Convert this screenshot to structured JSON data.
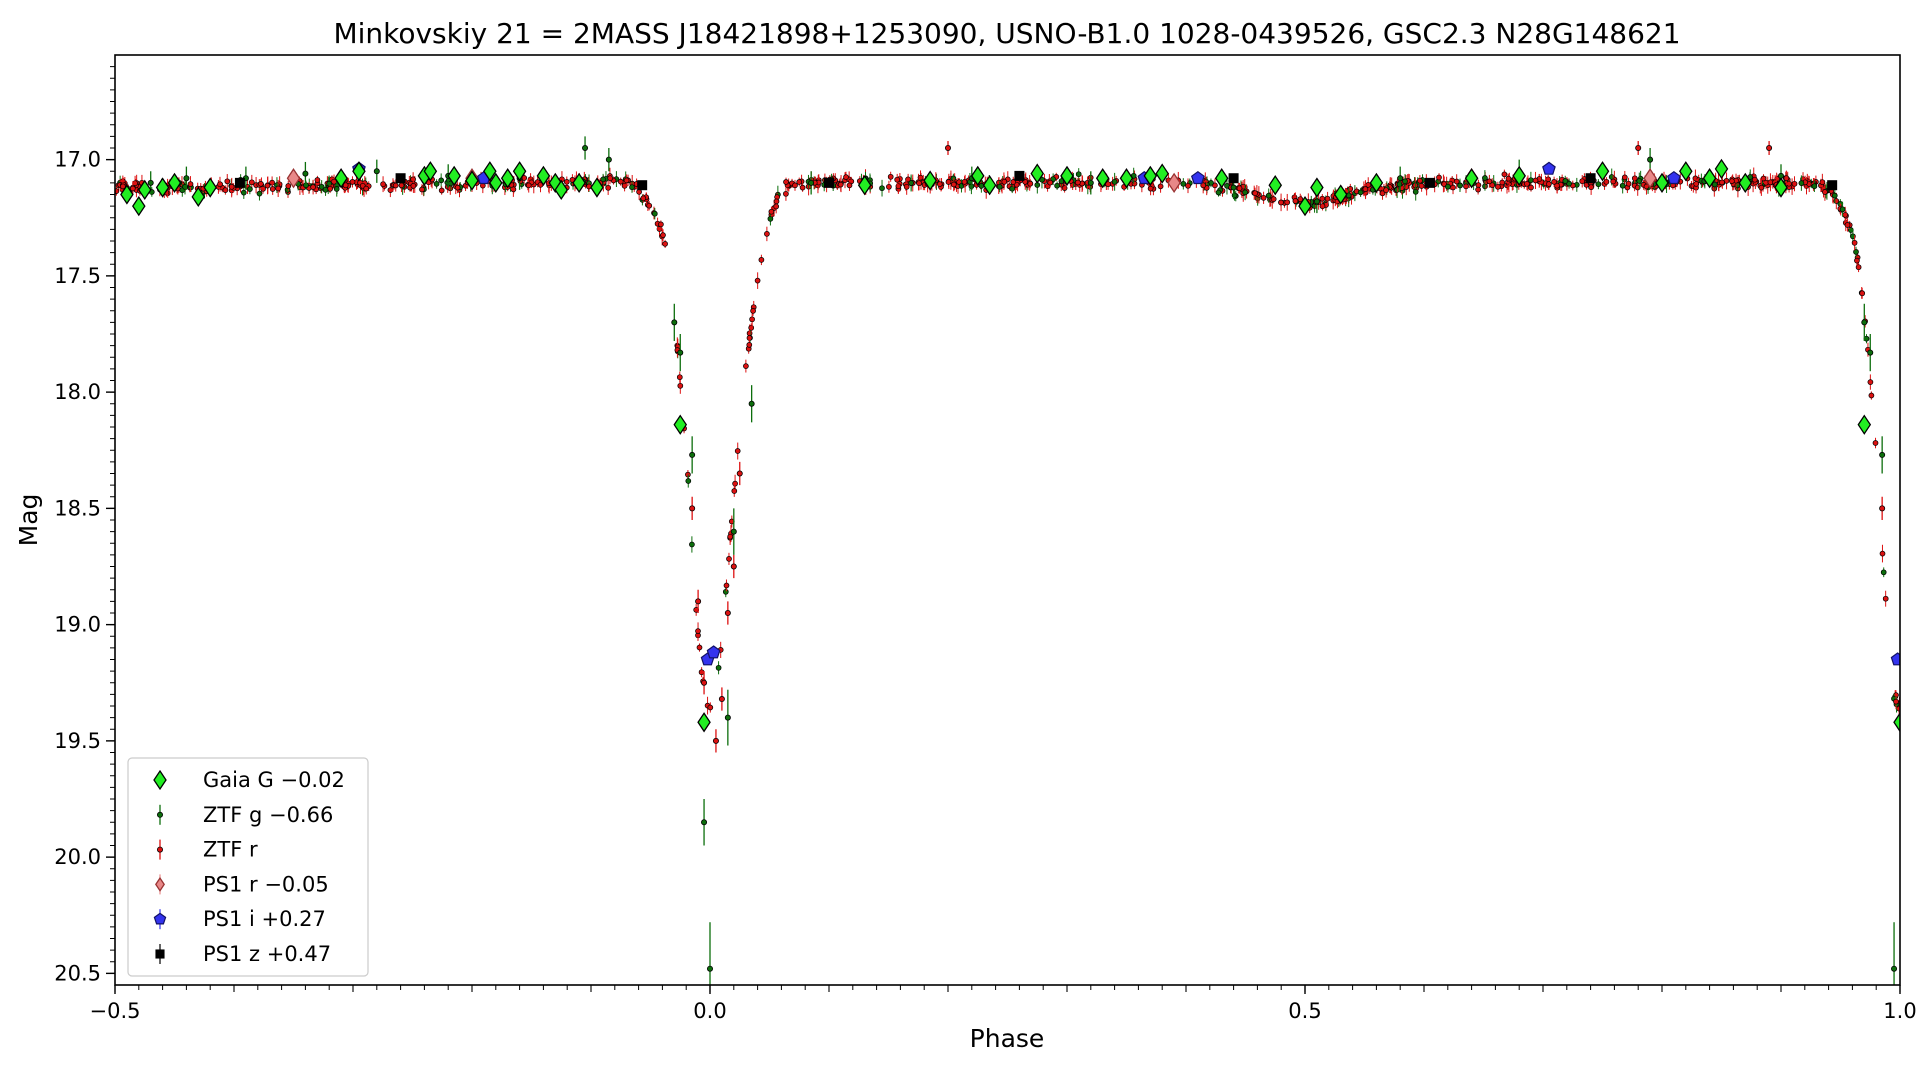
{
  "chart_data": {
    "type": "scatter",
    "title": "Minkovskiy 21 = 2MASS J18421898+1253090, USNO-B1.0 1028-0439526, GSC2.3 N28G148621",
    "xlabel": "Phase",
    "ylabel": "Mag",
    "xlim": [
      -0.5,
      1.0
    ],
    "ylim": [
      20.55,
      16.55
    ],
    "y_inverted": true,
    "x_ticks": [
      -0.5,
      0.0,
      0.5,
      1.0
    ],
    "x_tick_labels": [
      "−0.5",
      "0.0",
      "0.5",
      "1.0"
    ],
    "y_ticks": [
      17.0,
      17.5,
      18.0,
      18.5,
      19.0,
      19.5,
      20.0,
      20.5
    ],
    "y_tick_labels": [
      "17.0",
      "17.5",
      "18.0",
      "18.5",
      "19.0",
      "19.5",
      "20.0",
      "20.5"
    ],
    "grid": false,
    "legend_position": "lower-left",
    "light_curve": {
      "phase": [
        -0.5,
        -0.1,
        -0.07,
        -0.06,
        -0.05,
        -0.04,
        -0.035,
        -0.03,
        -0.025,
        -0.02,
        -0.015,
        -0.01,
        -0.005,
        0.0,
        0.005,
        0.01,
        0.015,
        0.02,
        0.025,
        0.03,
        0.035,
        0.04,
        0.045,
        0.05,
        0.055,
        0.06,
        0.065,
        0.08,
        0.1,
        0.4,
        0.44,
        0.47,
        0.5,
        0.53,
        0.56,
        0.6,
        0.9,
        0.93,
        0.94,
        0.95,
        0.96,
        0.965,
        0.97,
        0.975,
        0.98,
        0.985,
        0.99,
        0.995,
        1.0
      ],
      "mag": [
        17.12,
        17.1,
        17.1,
        17.13,
        17.2,
        17.32,
        17.45,
        17.65,
        17.95,
        18.25,
        18.65,
        19.05,
        19.3,
        19.38,
        19.3,
        19.05,
        18.75,
        18.45,
        18.15,
        17.9,
        17.7,
        17.52,
        17.38,
        17.27,
        17.19,
        17.14,
        17.12,
        17.1,
        17.1,
        17.1,
        17.12,
        17.16,
        17.19,
        17.16,
        17.12,
        17.1,
        17.1,
        17.11,
        17.13,
        17.2,
        17.32,
        17.45,
        17.65,
        17.95,
        18.25,
        18.65,
        19.05,
        19.3,
        19.38
      ]
    },
    "series": [
      {
        "name": "Gaia G −0.02",
        "color": "#22ee22",
        "edge": "#000000",
        "marker": "diamond",
        "x": [
          -0.49,
          -0.48,
          -0.475,
          -0.46,
          -0.45,
          -0.43,
          -0.42,
          -0.31,
          -0.295,
          -0.24,
          -0.235,
          -0.215,
          -0.2,
          -0.185,
          -0.18,
          -0.17,
          -0.16,
          -0.14,
          -0.13,
          -0.125,
          -0.11,
          -0.095,
          -0.025,
          -0.005,
          0.13,
          0.185,
          0.225,
          0.235,
          0.275,
          0.3,
          0.33,
          0.35,
          0.37,
          0.38,
          0.43,
          0.475,
          0.5,
          0.51,
          0.53,
          0.56,
          0.64,
          0.68,
          0.75,
          0.8,
          0.82,
          0.84,
          0.85,
          0.87,
          0.9,
          0.97,
          1.0
        ],
        "y": [
          17.15,
          17.2,
          17.13,
          17.12,
          17.1,
          17.16,
          17.12,
          17.08,
          17.05,
          17.07,
          17.05,
          17.07,
          17.09,
          17.05,
          17.1,
          17.08,
          17.05,
          17.07,
          17.1,
          17.13,
          17.1,
          17.12,
          18.14,
          19.42,
          17.11,
          17.09,
          17.07,
          17.11,
          17.06,
          17.07,
          17.08,
          17.08,
          17.07,
          17.06,
          17.08,
          17.11,
          17.2,
          17.12,
          17.15,
          17.1,
          17.08,
          17.07,
          17.05,
          17.1,
          17.05,
          17.08,
          17.04,
          17.1,
          17.12,
          18.14,
          19.42
        ]
      },
      {
        "name": "ZTF g −0.66",
        "color": "#0c6e0c",
        "edge": "#000000",
        "marker": "errorbar",
        "x": [
          -0.47,
          -0.44,
          -0.39,
          -0.34,
          -0.28,
          -0.22,
          -0.16,
          -0.105,
          -0.085,
          -0.03,
          -0.025,
          -0.015,
          -0.005,
          0.0,
          0.015,
          0.02,
          0.035,
          0.085,
          0.22,
          0.32,
          0.44,
          0.51,
          0.58,
          0.68,
          0.79,
          0.9,
          0.97,
          0.975,
          0.985,
          0.995
        ],
        "y": [
          17.1,
          17.08,
          17.08,
          17.06,
          17.05,
          17.07,
          17.08,
          16.95,
          17.0,
          17.7,
          17.83,
          18.27,
          19.85,
          20.48,
          19.4,
          18.6,
          18.05,
          17.1,
          17.08,
          17.1,
          17.12,
          17.18,
          17.08,
          17.05,
          17.0,
          17.07,
          17.7,
          17.83,
          18.27,
          20.48
        ],
        "yerr": [
          0.05,
          0.05,
          0.05,
          0.05,
          0.05,
          0.05,
          0.05,
          0.05,
          0.05,
          0.08,
          0.08,
          0.08,
          0.1,
          0.2,
          0.12,
          0.1,
          0.08,
          0.05,
          0.05,
          0.05,
          0.05,
          0.05,
          0.05,
          0.05,
          0.05,
          0.05,
          0.08,
          0.08,
          0.08,
          0.2
        ]
      },
      {
        "name": "ZTF r",
        "color": "#dd1111",
        "edge": "#000000",
        "marker": "errorbar",
        "x": [
          -0.015,
          -0.01,
          -0.005,
          0.005,
          0.01,
          0.015,
          0.02,
          0.025,
          0.2,
          0.78,
          0.89,
          0.985
        ],
        "y": [
          18.5,
          18.9,
          19.25,
          19.5,
          19.32,
          18.95,
          18.75,
          18.35,
          16.95,
          16.95,
          16.95,
          18.5
        ],
        "yerr": [
          0.05,
          0.05,
          0.05,
          0.05,
          0.05,
          0.05,
          0.05,
          0.05,
          0.03,
          0.03,
          0.03,
          0.05
        ]
      },
      {
        "name": "PS1 r −0.05",
        "color": "#e88888",
        "edge": "#993333",
        "marker": "diamond",
        "x": [
          -0.35,
          -0.2,
          0.39,
          0.64,
          0.79
        ],
        "y": [
          17.08,
          17.08,
          17.1,
          17.08,
          17.08
        ]
      },
      {
        "name": "PS1 i +0.27",
        "color": "#3333ee",
        "edge": "#111166",
        "marker": "pentagon",
        "x": [
          -0.295,
          -0.19,
          -0.002,
          0.003,
          0.365,
          0.41,
          0.705,
          0.81,
          0.998
        ],
        "y": [
          17.04,
          17.08,
          19.15,
          19.12,
          17.08,
          17.08,
          17.04,
          17.08,
          19.15
        ]
      },
      {
        "name": "PS1 z +0.47",
        "color": "#000000",
        "edge": "#000000",
        "marker": "square",
        "x": [
          -0.395,
          -0.26,
          -0.057,
          0.1,
          0.26,
          0.44,
          0.605,
          0.74,
          0.943
        ],
        "y": [
          17.1,
          17.08,
          17.11,
          17.1,
          17.07,
          17.08,
          17.1,
          17.08,
          17.11
        ]
      }
    ]
  }
}
